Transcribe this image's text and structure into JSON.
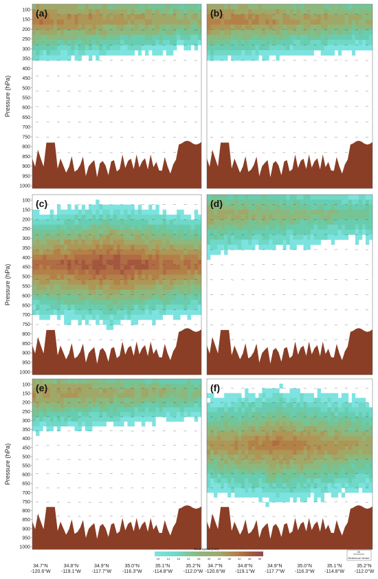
{
  "chart_data": {
    "type": "heatmap",
    "description_panels": [
      "(a)",
      "(b)",
      "(c)",
      "(d)",
      "(e)",
      "(f)"
    ],
    "ylabel": "Pressure (hPa)",
    "yticks": [
      "100",
      "150",
      "200",
      "250",
      "300",
      "350",
      "400",
      "450",
      "500",
      "550",
      "600",
      "650",
      "700",
      "750",
      "800",
      "850",
      "900",
      "950",
      "1000"
    ],
    "ylim": [
      1000,
      100
    ],
    "xticks": [
      {
        "lat": "34.7°N",
        "lon": "-120.6°W"
      },
      {
        "lat": "34.8°N",
        "lon": "-119.1°W"
      },
      {
        "lat": "34.9°N",
        "lon": "-117.7°W"
      },
      {
        "lat": "35.0°N",
        "lon": "-116.3°W"
      },
      {
        "lat": "35.1°N",
        "lon": "-114.8°W"
      },
      {
        "lat": "35.2°N",
        "lon": "-112.0°W"
      }
    ],
    "colorbar": {
      "title": "Wind Speed  (m/s)",
      "ticks": [
        "10",
        "14",
        "18",
        "22",
        "26",
        "30",
        "34",
        "38",
        "42",
        "46",
        "50"
      ],
      "colors": [
        "#7de3e0",
        "#6fd8c6",
        "#68cdb0",
        "#74c496",
        "#8cb87e",
        "#a0a868",
        "#ad9656",
        "#b38148",
        "#b06c42",
        "#a4573e",
        "#924a4a"
      ]
    },
    "reference_vector": {
      "value": "20",
      "label": "Reference Vector"
    },
    "panel_max_wind": [
      {
        "panel": "(a)",
        "jet_core_hPa": 175,
        "max_speed": 42
      },
      {
        "panel": "(b)",
        "jet_core_hPa": 175,
        "max_speed": 42
      },
      {
        "panel": "(c)",
        "jet_core_hPa": 450,
        "max_speed": 50
      },
      {
        "panel": "(d)",
        "jet_core_hPa": 200,
        "max_speed": 34
      },
      {
        "panel": "(e)",
        "jet_core_hPa": 175,
        "max_speed": 38
      },
      {
        "panel": "(f)",
        "jet_core_hPa": 450,
        "max_speed": 42
      }
    ]
  }
}
